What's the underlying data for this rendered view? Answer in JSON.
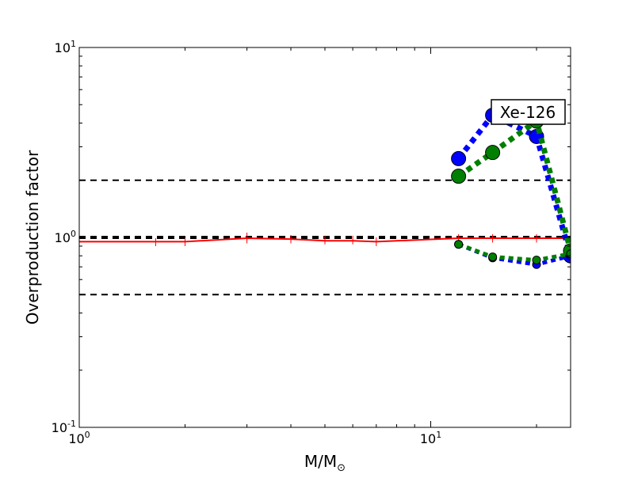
{
  "chart_data": {
    "type": "line",
    "title": "",
    "xlabel": "M/M",
    "xlabel_subscript": "⊙",
    "ylabel": "Overproduction factor",
    "xscale": "log",
    "yscale": "log",
    "xlim": [
      1,
      25
    ],
    "ylim": [
      0.1,
      10
    ],
    "grid": false,
    "x_ticks": [
      {
        "value": 1,
        "base": "10",
        "exp": "0"
      },
      {
        "value": 10,
        "base": "10",
        "exp": "1"
      }
    ],
    "y_ticks": [
      {
        "value": 0.1,
        "base": "10",
        "exp": "-1"
      },
      {
        "value": 1,
        "base": "10",
        "exp": "0"
      },
      {
        "value": 10,
        "base": "10",
        "exp": "1"
      }
    ],
    "annotation": "Xe-126",
    "reference_lines": [
      {
        "y": 2.0,
        "color": "#000000",
        "width": 2
      },
      {
        "y": 1.0,
        "color": "#000000",
        "width": 4
      },
      {
        "y": 0.5,
        "color": "#000000",
        "width": 2
      }
    ],
    "series": [
      {
        "color": "#ff0000",
        "style": "solid",
        "x": [
          1,
          1.65,
          2,
          3,
          4,
          5,
          6,
          7,
          12,
          15,
          20,
          25
        ],
        "y": [
          0.95,
          0.95,
          0.95,
          0.99,
          0.98,
          0.96,
          0.96,
          0.95,
          0.99,
          0.99,
          0.99,
          0.99
        ],
        "error_x": [
          1.65,
          2,
          3,
          4,
          5,
          6,
          7,
          12,
          15,
          20,
          25
        ],
        "error_low": [
          0.9,
          0.9,
          0.93,
          0.93,
          0.92,
          0.92,
          0.9,
          0.94,
          0.94,
          0.94,
          0.94
        ],
        "error_high": [
          0.99,
          0.99,
          1.06,
          1.03,
          1.02,
          1.02,
          1.0,
          1.04,
          1.04,
          1.04,
          1.04
        ]
      },
      {
        "color": "#0000ff",
        "style": "dotted",
        "marker_size": 9,
        "x": [
          12,
          15,
          20,
          25
        ],
        "y": [
          2.6,
          4.4,
          3.4,
          0.8
        ]
      },
      {
        "color": "#007f00",
        "style": "dotted",
        "marker_size": 9,
        "x": [
          12,
          15,
          20,
          25
        ],
        "y": [
          2.1,
          2.8,
          4.1,
          0.85
        ]
      },
      {
        "color": "#0000ff",
        "style": "dotted",
        "marker_size": 5,
        "x": [
          12,
          15,
          20,
          25
        ],
        "y": [
          0.92,
          0.78,
          0.72,
          0.8
        ]
      },
      {
        "color": "#007f00",
        "style": "dotted",
        "marker_size": 5,
        "x": [
          12,
          15,
          20,
          25
        ],
        "y": [
          0.92,
          0.79,
          0.76,
          0.82
        ]
      }
    ]
  }
}
